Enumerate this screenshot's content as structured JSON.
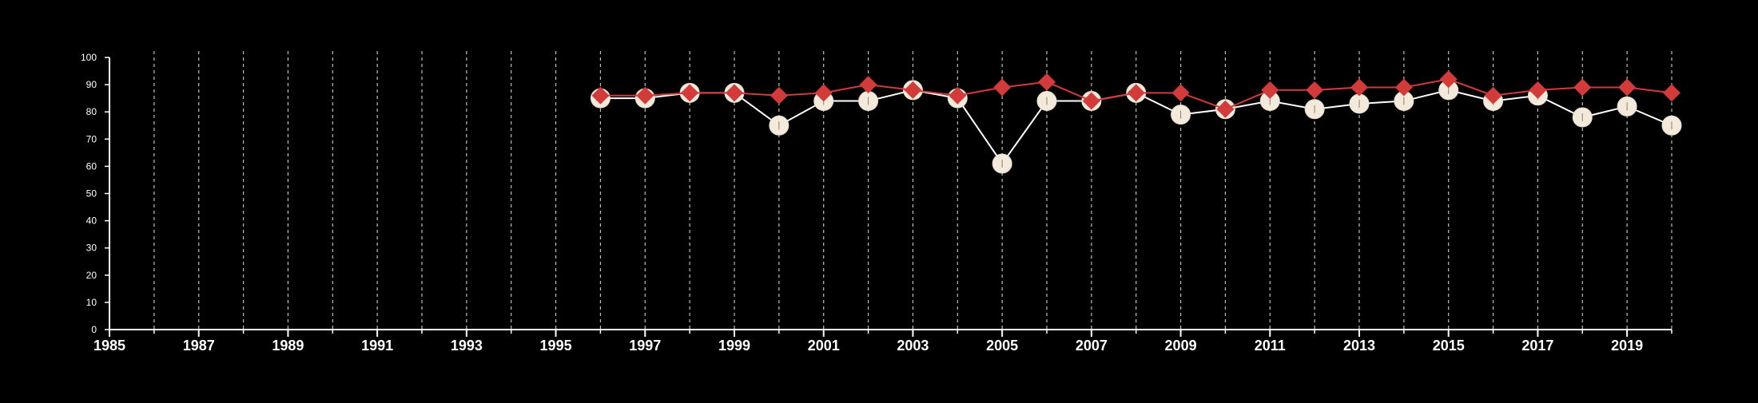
{
  "chart_data": {
    "type": "line",
    "title": "",
    "xlabel": "",
    "ylabel": "",
    "xlim": [
      1985,
      2020
    ],
    "ylim": [
      0,
      100
    ],
    "xticks": [
      1985,
      1987,
      1989,
      1991,
      1993,
      1995,
      1997,
      1999,
      2001,
      2003,
      2005,
      2007,
      2009,
      2011,
      2013,
      2015,
      2017,
      2019
    ],
    "xtick_labels": [
      "1985",
      "1987",
      "1989",
      "1991",
      "1993",
      "1995",
      "1997",
      "1999",
      "2001",
      "2003",
      "2005",
      "2007",
      "2009",
      "2011",
      "2013",
      "2015",
      "2017",
      "2019"
    ],
    "yticks": [
      0,
      10,
      20,
      30,
      40,
      50,
      60,
      70,
      80,
      90,
      100
    ],
    "ytick_labels": [
      "0",
      "10",
      "20",
      "30",
      "40",
      "50",
      "60",
      "70",
      "80",
      "90",
      "100"
    ],
    "grid": "vertical dashed lines at every year",
    "legend": "none",
    "x": [
      1996,
      1997,
      1998,
      1999,
      2000,
      2001,
      2002,
      2003,
      2004,
      2005,
      2006,
      2007,
      2008,
      2009,
      2010,
      2011,
      2012,
      2013,
      2014,
      2015,
      2016,
      2017,
      2018,
      2019,
      2020
    ],
    "series": [
      {
        "marker": "circle",
        "color": "#FFFFFF",
        "marker_fill": "#F4EADB",
        "values": [
          85,
          85,
          87,
          87,
          75,
          84,
          84,
          88,
          85,
          61,
          84,
          84,
          87,
          79,
          81,
          84,
          81,
          83,
          84,
          88,
          84,
          86,
          78,
          82,
          75
        ]
      },
      {
        "marker": "diamond",
        "color": "#D33A3A",
        "values": [
          86,
          86,
          87,
          87,
          86,
          87,
          90,
          88,
          86,
          89,
          91,
          84,
          87,
          87,
          81,
          88,
          88,
          89,
          89,
          92,
          86,
          88,
          89,
          89,
          87
        ]
      }
    ]
  }
}
